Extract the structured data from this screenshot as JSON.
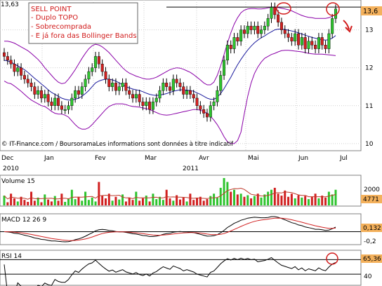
{
  "chart_data": [
    {
      "type": "candlestick",
      "panel": "price",
      "price_top_left": "13,63",
      "last_price": "13,6",
      "source_note": "© IT-Finance.com / BoursoramaLes informations sont données à titre indicatif",
      "annotation": {
        "title": "SELL POINT",
        "lines": [
          "- Duplo TOPO",
          "- Sobrecomprada",
          "- E  já fora das Bollinger Bands"
        ]
      },
      "x_month_labels": [
        "Dec",
        "Jan",
        "Fev",
        "Mar",
        "Avr",
        "Mai",
        "Jun",
        "Jul"
      ],
      "x_year_labels": [
        "2010",
        "2011"
      ],
      "y_ticks": [
        "13",
        "12",
        "11",
        "10"
      ],
      "ylim": [
        9.85,
        13.75
      ],
      "resistance_level": 13.6,
      "close": [
        12.3,
        12.2,
        12.1,
        11.9,
        12.0,
        11.8,
        11.7,
        11.6,
        11.5,
        11.3,
        11.4,
        11.2,
        11.3,
        11.1,
        11.0,
        11.2,
        11.0,
        10.9,
        10.9,
        11.0,
        11.2,
        11.4,
        11.3,
        11.5,
        11.7,
        11.9,
        12.0,
        12.3,
        12.1,
        11.9,
        11.7,
        11.5,
        11.6,
        11.4,
        11.5,
        11.6,
        11.4,
        11.3,
        11.2,
        11.3,
        11.1,
        11.0,
        11.1,
        10.9,
        11.1,
        11.2,
        11.4,
        11.6,
        11.5,
        11.4,
        11.7,
        11.6,
        11.5,
        11.3,
        11.4,
        11.3,
        11.2,
        11.0,
        10.9,
        10.8,
        10.7,
        11.0,
        11.1,
        11.4,
        11.8,
        12.2,
        12.6,
        12.5,
        12.8,
        12.7,
        13.0,
        12.9,
        13.1,
        13.0,
        13.1,
        12.9,
        13.0,
        13.1,
        13.3,
        13.6,
        13.4,
        13.2,
        13.0,
        12.9,
        12.8,
        12.7,
        12.9,
        12.6,
        12.8,
        12.5,
        12.7,
        12.6,
        12.5,
        12.8,
        12.6,
        12.5,
        12.9,
        13.3,
        13.55
      ],
      "bollinger_upper": [
        12.7,
        12.7,
        12.68,
        12.65,
        12.6,
        12.55,
        12.5,
        12.45,
        12.38,
        12.3,
        12.22,
        12.12,
        12.0,
        11.9,
        11.8,
        11.7,
        11.62,
        11.58,
        11.6,
        11.7,
        11.82,
        11.95,
        12.1,
        12.25,
        12.38,
        12.5,
        12.58,
        12.62,
        12.6,
        12.55,
        12.48,
        12.4,
        12.3,
        12.2,
        12.1,
        12.0,
        11.92,
        11.86,
        11.82,
        11.78,
        11.75,
        11.72,
        11.7,
        11.7,
        11.72,
        11.75,
        11.8,
        11.85,
        11.9,
        11.95,
        11.98,
        12.0,
        11.99,
        11.96,
        11.92,
        11.88,
        11.82,
        11.75,
        11.68,
        11.6,
        11.55,
        11.55,
        11.62,
        11.8,
        12.05,
        12.35,
        12.65,
        12.92,
        13.15,
        13.32,
        13.45,
        13.52,
        13.55,
        13.56,
        13.56,
        13.55,
        13.55,
        13.56,
        13.58,
        13.6,
        13.6,
        13.59,
        13.57,
        13.55,
        13.53,
        13.5,
        13.46,
        13.42,
        13.38,
        13.35,
        13.33,
        13.32,
        13.3,
        13.3,
        13.3,
        13.3,
        13.32,
        13.36,
        13.4
      ],
      "bollinger_mid": [
        12.2,
        12.18,
        12.15,
        12.1,
        12.05,
        12.0,
        11.95,
        11.88,
        11.8,
        11.72,
        11.65,
        11.57,
        11.5,
        11.42,
        11.35,
        11.3,
        11.25,
        11.2,
        11.17,
        11.15,
        11.15,
        11.17,
        11.2,
        11.25,
        11.32,
        11.4,
        11.5,
        11.6,
        11.65,
        11.68,
        11.7,
        11.7,
        11.68,
        11.65,
        11.6,
        11.55,
        11.5,
        11.47,
        11.44,
        11.42,
        11.4,
        11.37,
        11.33,
        11.3,
        11.28,
        11.27,
        11.28,
        11.3,
        11.32,
        11.35,
        11.38,
        11.4,
        11.42,
        11.42,
        11.41,
        11.4,
        11.38,
        11.34,
        11.3,
        11.25,
        11.2,
        11.17,
        11.17,
        11.22,
        11.32,
        11.45,
        11.6,
        11.75,
        11.92,
        12.08,
        12.22,
        12.35,
        12.47,
        12.57,
        12.66,
        12.73,
        12.79,
        12.84,
        12.9,
        12.95,
        13.0,
        13.02,
        13.02,
        13.01,
        12.99,
        12.97,
        12.95,
        12.92,
        12.89,
        12.86,
        12.83,
        12.8,
        12.78,
        12.76,
        12.74,
        12.73,
        12.74,
        12.78,
        12.85
      ],
      "bollinger_lower": [
        11.65,
        11.6,
        11.58,
        11.52,
        11.45,
        11.38,
        11.3,
        11.22,
        11.15,
        11.1,
        11.05,
        11.0,
        10.98,
        10.92,
        10.85,
        10.8,
        10.78,
        10.78,
        10.75,
        10.7,
        10.6,
        10.5,
        10.42,
        10.38,
        10.38,
        10.42,
        10.5,
        10.6,
        10.7,
        10.8,
        10.9,
        10.98,
        11.02,
        11.05,
        11.05,
        11.05,
        11.03,
        11.0,
        10.98,
        10.97,
        10.96,
        10.94,
        10.92,
        10.9,
        10.86,
        10.82,
        10.78,
        10.76,
        10.75,
        10.76,
        10.78,
        10.8,
        10.82,
        10.84,
        10.86,
        10.88,
        10.9,
        10.9,
        10.88,
        10.85,
        10.8,
        10.72,
        10.62,
        10.5,
        10.35,
        10.18,
        10.05,
        10.0,
        10.0,
        10.08,
        10.3,
        10.8,
        11.25,
        11.6,
        11.85,
        12.02,
        12.15,
        12.25,
        12.3,
        12.35,
        12.38,
        12.42,
        12.45,
        12.46,
        12.46,
        12.45,
        12.44,
        12.43,
        12.42,
        12.4,
        12.38,
        12.37,
        12.36,
        12.36,
        12.36,
        12.35,
        12.34,
        12.33,
        12.32
      ]
    },
    {
      "type": "bar",
      "panel": "volume",
      "label": "Volume 15",
      "y_ticks": [
        "2000"
      ],
      "last_value_label": "4771",
      "values": [
        25,
        8,
        30,
        18,
        10,
        22,
        14,
        9,
        35,
        12,
        20,
        8,
        28,
        15,
        10,
        24,
        12,
        30,
        9,
        18,
        40,
        16,
        22,
        12,
        35,
        14,
        20,
        10,
        60,
        25,
        18,
        30,
        12,
        22,
        15,
        28,
        10,
        20,
        14,
        35,
        12,
        18,
        25,
        10,
        30,
        16,
        22,
        14,
        40,
        18,
        12,
        26,
        15,
        20,
        10,
        30,
        14,
        18,
        22,
        12,
        16,
        24,
        30,
        20,
        45,
        70,
        60,
        35,
        40,
        28,
        30,
        22,
        26,
        18,
        24,
        30,
        20,
        28,
        35,
        40,
        45,
        30,
        25,
        38,
        22,
        30,
        18,
        26,
        20,
        24,
        16,
        22,
        30,
        18,
        25,
        20,
        35,
        28,
        40
      ],
      "value_colors": [
        "#2ec42e",
        "#d12020"
      ]
    },
    {
      "type": "line",
      "panel": "macd",
      "label": "MACD 12 26 9",
      "y_ticks": [
        "-0,2"
      ],
      "last_value_label": "0,132"
    },
    {
      "type": "line",
      "panel": "rsi",
      "label": "RSI 14",
      "y_ticks": [
        "40"
      ],
      "last_value_label": "65,36"
    }
  ],
  "colors": {
    "up_candle": "#2ec42e",
    "down_candle": "#d12020",
    "bollinger": "#8a00a8",
    "moving_average": "#1c1c9e",
    "annotation": "#d11a1a",
    "axis_label_bg": "#f4b15c"
  }
}
